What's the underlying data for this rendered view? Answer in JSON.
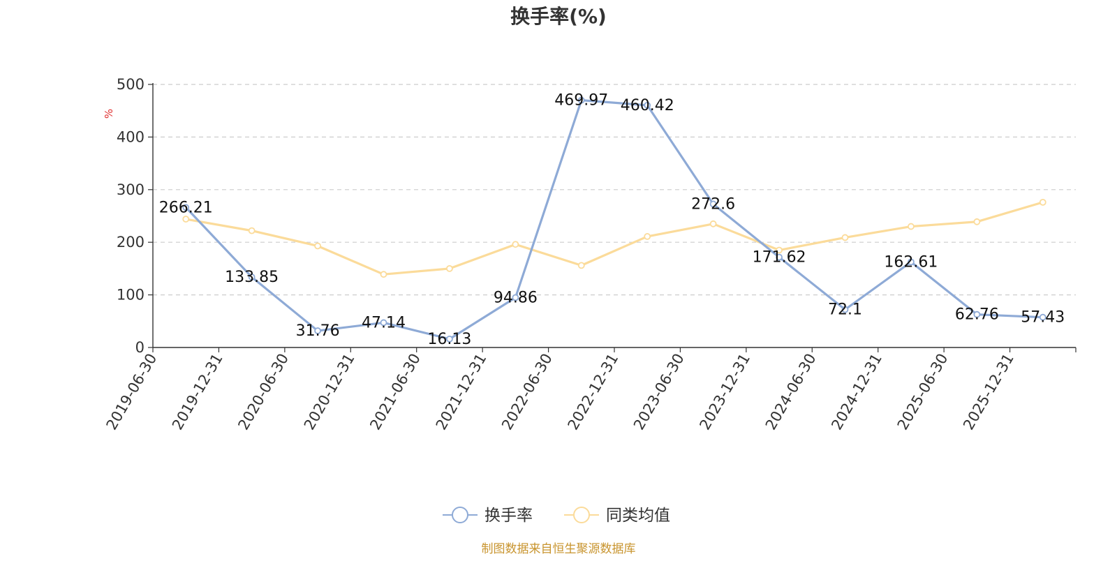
{
  "chart_data": {
    "type": "line",
    "title": "换手率(%)",
    "ylabel": "%",
    "ylim": [
      0,
      500
    ],
    "yticks": [
      0,
      100,
      200,
      300,
      400,
      500
    ],
    "categories": [
      "2019-06-30",
      "2019-12-31",
      "2020-06-30",
      "2020-12-31",
      "2021-06-30",
      "2021-12-31",
      "2022-06-30",
      "2022-12-31",
      "2023-06-30",
      "2023-12-31",
      "2024-06-30",
      "2024-12-31",
      "2025-06-30",
      "2025-12-31"
    ],
    "grid": true,
    "legend_position": "bottom-center",
    "series": [
      {
        "name": "换手率",
        "color": "#8eaad6",
        "show_labels": true,
        "values": [
          266.21,
          133.85,
          31.76,
          47.14,
          16.13,
          94.86,
          469.97,
          460.42,
          272.6,
          171.62,
          72.1,
          162.61,
          62.76,
          57.43
        ],
        "labels": [
          "266.21",
          "133.85",
          "31.76",
          "47.14",
          "16.13",
          "94.86",
          "469.97",
          "460.42",
          "272.6",
          "171.62",
          "72.1",
          "162.61",
          "62.76",
          "57.43"
        ]
      },
      {
        "name": "同类均值",
        "color": "#fbdb9a",
        "show_labels": false,
        "values": [
          244,
          222,
          193,
          139,
          150,
          196,
          156,
          211,
          235,
          185,
          209,
          230,
          239,
          276
        ]
      }
    ]
  },
  "footer": {
    "source": "制图数据来自恒生聚源数据库",
    "source_color": "#c8942e"
  }
}
